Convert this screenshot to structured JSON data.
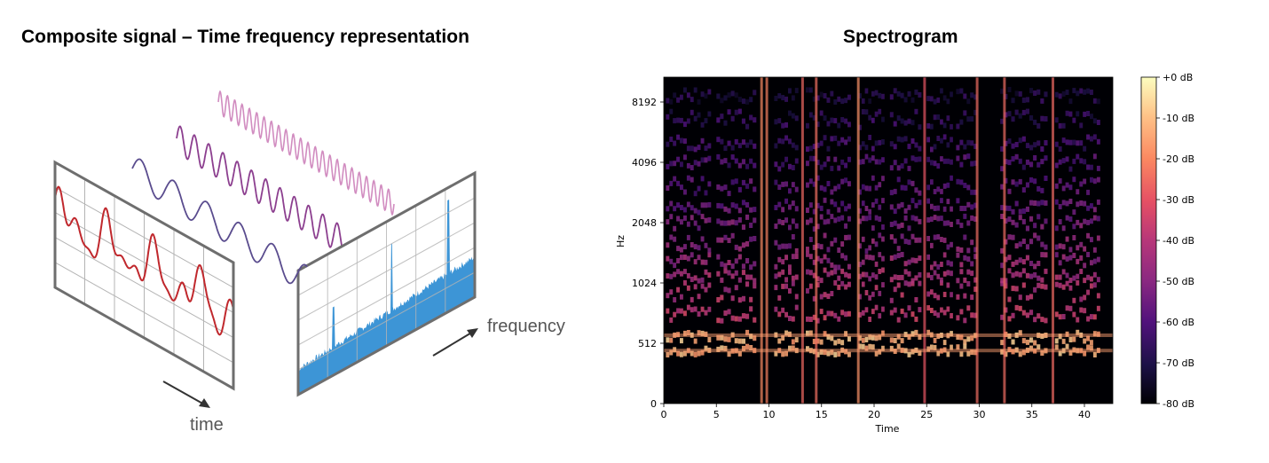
{
  "left_panel": {
    "title": "Composite signal – Time frequency representation",
    "time_label": "time",
    "frequency_label": "frequency",
    "colors": {
      "time_signal": "#c0282d",
      "spectrum_fill": "#3d95d6",
      "frame": "#6e6e6e",
      "grid": "#b4b4b4",
      "wave_far": "#d18cc0",
      "wave_mid": "#8c3f8f",
      "wave_near": "#5a4c8e"
    }
  },
  "right_panel": {
    "title": "Spectrogram",
    "colorbar_ticks": [
      "+0 dB",
      "-10 dB",
      "-20 dB",
      "-30 dB",
      "-40 dB",
      "-50 dB",
      "-60 dB",
      "-70 dB",
      "-80 dB"
    ],
    "colormap": "magma"
  },
  "chart_data": {
    "type": "heatmap",
    "title": "Spectrogram",
    "xlabel": "Time",
    "ylabel": "Hz",
    "x_ticks": [
      0,
      5,
      10,
      15,
      20,
      25,
      30,
      35,
      40
    ],
    "x_range": [
      0,
      42.7
    ],
    "y_scale": "log2",
    "y_ticks": [
      0,
      512,
      1024,
      2048,
      4096,
      8192
    ],
    "colorbar": {
      "label_unit": "dB",
      "range": [
        -80,
        0
      ],
      "ticks": [
        0,
        -10,
        -20,
        -30,
        -40,
        -50,
        -60,
        -70,
        -80
      ]
    },
    "bright_events_time": [
      9.3,
      9.8,
      13.2,
      14.5,
      18.5,
      24.8,
      29.8,
      32.4,
      37.0
    ],
    "bright_bands_hz": [
      450,
      580
    ]
  }
}
